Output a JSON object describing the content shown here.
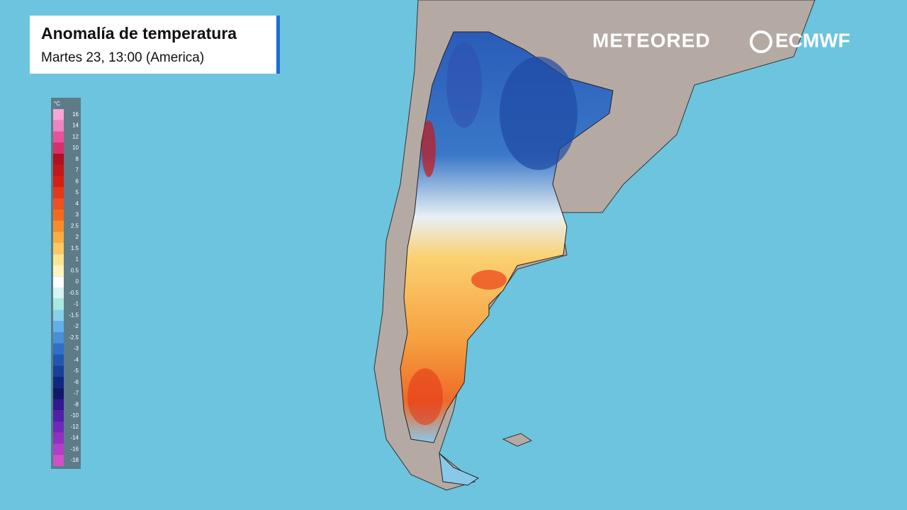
{
  "header": {
    "title": "Anomalía de temperatura",
    "subtitle": "Martes 23, 13:00 (America)"
  },
  "legend": {
    "unit": "°C",
    "items": [
      {
        "label": "16",
        "color": "#f5a6d4"
      },
      {
        "label": "14",
        "color": "#ef84c2"
      },
      {
        "label": "12",
        "color": "#e8529c"
      },
      {
        "label": "10",
        "color": "#d8306c"
      },
      {
        "label": "8",
        "color": "#b01020"
      },
      {
        "label": "7",
        "color": "#c41818"
      },
      {
        "label": "6",
        "color": "#d42012"
      },
      {
        "label": "5",
        "color": "#e43818"
      },
      {
        "label": "4",
        "color": "#ee5020"
      },
      {
        "label": "3",
        "color": "#f46a1a"
      },
      {
        "label": "2.5",
        "color": "#f88c28"
      },
      {
        "label": "2",
        "color": "#fbae40"
      },
      {
        "label": "1.5",
        "color": "#fcc860"
      },
      {
        "label": "1",
        "color": "#fde490"
      },
      {
        "label": "0.5",
        "color": "#fff4c0"
      },
      {
        "label": "0",
        "color": "#ffffff"
      },
      {
        "label": "-0.5",
        "color": "#d6f4f0"
      },
      {
        "label": "-1",
        "color": "#a8e8e0"
      },
      {
        "label": "-1.5",
        "color": "#88d0ec"
      },
      {
        "label": "-2",
        "color": "#62b0e8"
      },
      {
        "label": "-2.5",
        "color": "#4890d8"
      },
      {
        "label": "-3",
        "color": "#3070c8"
      },
      {
        "label": "-4",
        "color": "#2058b0"
      },
      {
        "label": "-5",
        "color": "#184098"
      },
      {
        "label": "-6",
        "color": "#102880"
      },
      {
        "label": "-7",
        "color": "#101868"
      },
      {
        "label": "-8",
        "color": "#301890"
      },
      {
        "label": "-10",
        "color": "#5020a8"
      },
      {
        "label": "-12",
        "color": "#7028b8"
      },
      {
        "label": "-14",
        "color": "#9030c0"
      },
      {
        "label": "-16",
        "color": "#b040c8"
      },
      {
        "label": "-18",
        "color": "#d050c8"
      }
    ]
  },
  "logos": {
    "left": "METEORED",
    "right": "ECMWF"
  }
}
